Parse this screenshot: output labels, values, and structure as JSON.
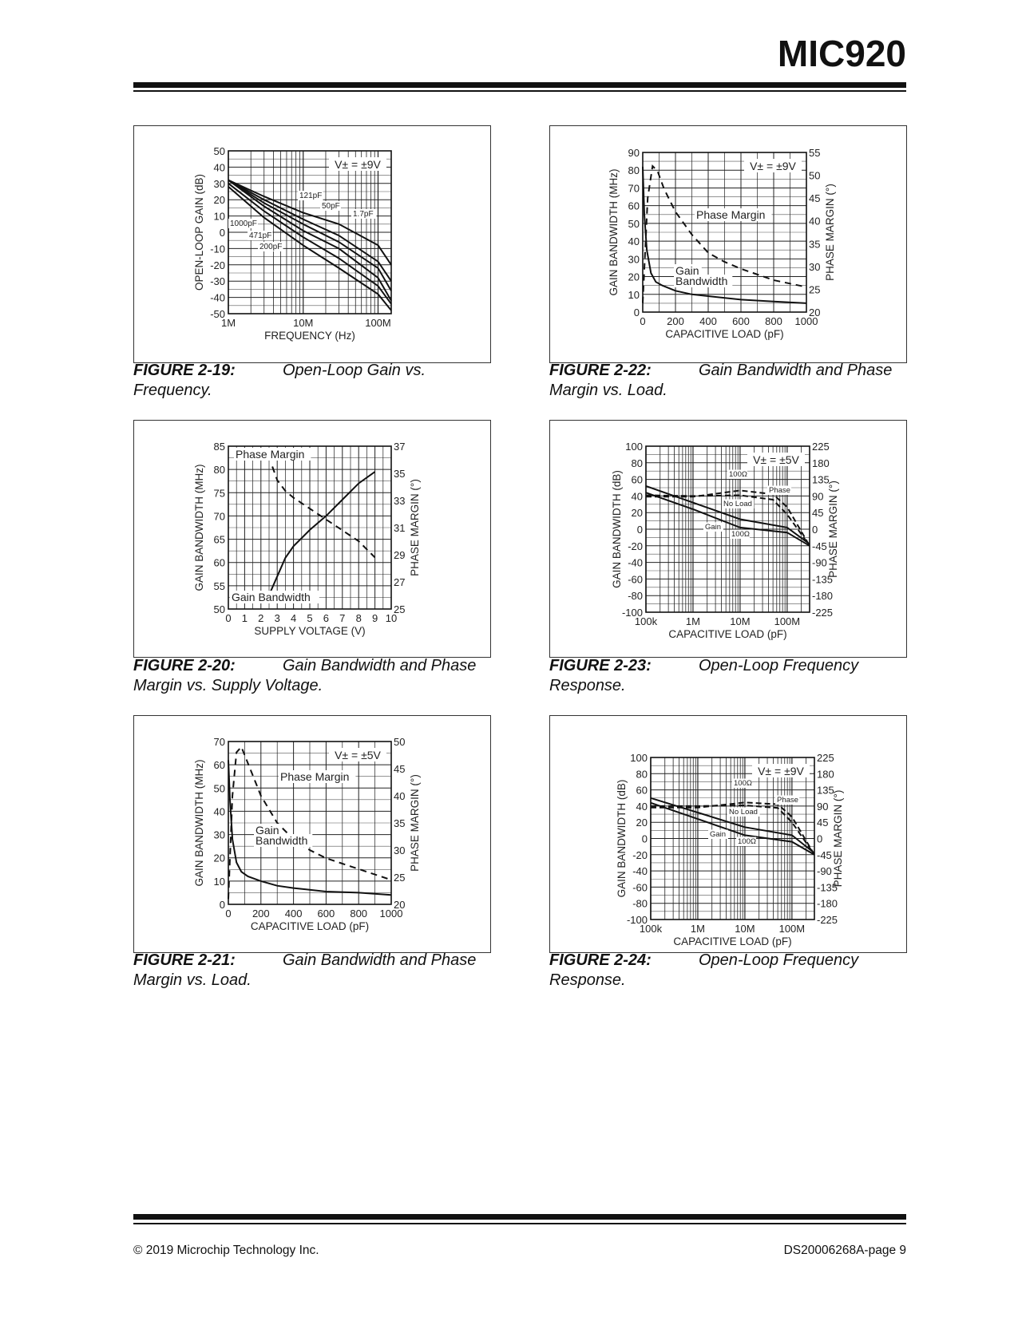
{
  "header": {
    "title": "MIC920"
  },
  "footer": {
    "copyright": "© 2019 Microchip Technology Inc.",
    "page": "DS20006268A-page 9"
  },
  "figures": [
    {
      "num": "FIGURE 2-19:",
      "caption": "Open-Loop Gain vs.",
      "caption2": "Frequency."
    },
    {
      "num": "FIGURE 2-22:",
      "caption": "Gain Bandwidth and Phase",
      "caption2": "Margin vs. Load."
    },
    {
      "num": "FIGURE 2-20:",
      "caption": "Gain Bandwidth and Phase",
      "caption2": "Margin vs. Supply Voltage."
    },
    {
      "num": "FIGURE 2-23:",
      "caption": "Open-Loop Frequency",
      "caption2": "Response."
    },
    {
      "num": "FIGURE 2-21:",
      "caption": "Gain Bandwidth and Phase",
      "caption2": "Margin vs. Load."
    },
    {
      "num": "FIGURE 2-24:",
      "caption": "Open-Loop Frequency",
      "caption2": "Response."
    }
  ],
  "chart_data": [
    {
      "id": "fig2-19",
      "type": "line",
      "xlabel": "FREQUENCY (Hz)",
      "ylabel": "OPEN-LOOP GAIN (dB)",
      "xscale": "log",
      "xlim": [
        1000000,
        150000000
      ],
      "ylim": [
        -50,
        50
      ],
      "xticks": [
        "1M",
        "10M",
        "100M"
      ],
      "yticks": [
        "50",
        "40",
        "30",
        "20",
        "10",
        "0",
        "-10",
        "-20",
        "-30",
        "-40",
        "-50"
      ],
      "annotation": "V± = ±9V",
      "series": [
        {
          "name": "1.7pF",
          "x": [
            1000000,
            3000000,
            10000000,
            30000000,
            100000000,
            150000000
          ],
          "y": [
            32,
            22,
            12,
            5,
            -8,
            -20
          ]
        },
        {
          "name": "50pF",
          "x": [
            1000000,
            3000000,
            10000000,
            30000000,
            100000000,
            150000000
          ],
          "y": [
            32,
            20,
            8,
            -2,
            -18,
            -30
          ]
        },
        {
          "name": "121pF",
          "x": [
            1000000,
            3000000,
            10000000,
            30000000,
            100000000,
            150000000
          ],
          "y": [
            32,
            18,
            5,
            -6,
            -22,
            -36
          ]
        },
        {
          "name": "200pF",
          "x": [
            1000000,
            3000000,
            10000000,
            30000000,
            100000000,
            150000000
          ],
          "y": [
            32,
            16,
            1,
            -10,
            -28,
            -42
          ]
        },
        {
          "name": "471pF",
          "x": [
            1000000,
            3000000,
            10000000,
            30000000,
            100000000,
            150000000
          ],
          "y": [
            30,
            13,
            -3,
            -16,
            -33,
            -44
          ]
        },
        {
          "name": "1000pF",
          "x": [
            1000000,
            3000000,
            10000000,
            30000000,
            100000000,
            150000000
          ],
          "y": [
            28,
            9,
            -8,
            -22,
            -38,
            -48
          ]
        }
      ]
    },
    {
      "id": "fig2-22",
      "type": "line",
      "xlabel": "CAPACITIVE LOAD (pF)",
      "ylabel": "GAIN BANDWIDTH (MHz)",
      "y2label": "PHASE MARGIN (°)",
      "xlim": [
        0,
        1000
      ],
      "ylim": [
        0,
        90
      ],
      "y2lim": [
        20,
        55
      ],
      "xticks": [
        "0",
        "200",
        "400",
        "600",
        "800",
        "1000"
      ],
      "yticks": [
        "90",
        "80",
        "70",
        "60",
        "50",
        "40",
        "30",
        "20",
        "10",
        "0"
      ],
      "y2ticks": [
        "55",
        "50",
        "45",
        "40",
        "35",
        "30",
        "25",
        "20"
      ],
      "annotation": "V± = ±9V",
      "labels": [
        "Phase Margin",
        "Gain",
        "Bandwidth"
      ],
      "series": [
        {
          "name": "Gain Bandwidth",
          "axis": "left",
          "x": [
            0,
            10,
            25,
            50,
            80,
            120,
            200,
            300,
            400,
            600,
            800,
            1000
          ],
          "y": [
            82,
            55,
            35,
            22,
            17,
            15,
            12,
            10,
            9,
            7,
            6,
            5
          ]
        },
        {
          "name": "Phase Margin",
          "axis": "right",
          "x": [
            0,
            30,
            60,
            90,
            130,
            200,
            300,
            400,
            500,
            600,
            800,
            1000
          ],
          "y": [
            22,
            45,
            52,
            51,
            47,
            42,
            37,
            33,
            31,
            29.5,
            27,
            25.5
          ]
        }
      ]
    },
    {
      "id": "fig2-20",
      "type": "line",
      "xlabel": "SUPPLY VOLTAGE (V)",
      "ylabel": "GAIN BANDWIDTH (MHz)",
      "y2label": "PHASE MARGIN (°)",
      "xlim": [
        0,
        10
      ],
      "ylim": [
        50,
        85
      ],
      "y2lim": [
        25,
        37
      ],
      "xticks": [
        "0",
        "1",
        "2",
        "3",
        "4",
        "5",
        "6",
        "7",
        "8",
        "9",
        "10"
      ],
      "yticks": [
        "85",
        "80",
        "75",
        "70",
        "65",
        "60",
        "55",
        "50"
      ],
      "y2ticks": [
        "37",
        "35",
        "33",
        "31",
        "29",
        "27",
        "25"
      ],
      "labels": [
        "Phase Margin",
        "Gain Bandwidth"
      ],
      "series": [
        {
          "name": "Gain Bandwidth",
          "axis": "left",
          "x": [
            2.5,
            3,
            3.5,
            4,
            5,
            6,
            7,
            8,
            9
          ],
          "y": [
            53,
            57,
            61,
            63.5,
            67,
            70,
            73.5,
            77,
            79.5
          ]
        },
        {
          "name": "Phase Margin",
          "axis": "right",
          "x": [
            2.7,
            3,
            3.5,
            4,
            5,
            6,
            7,
            8,
            9
          ],
          "y": [
            35.5,
            34.5,
            33.7,
            33.2,
            32.4,
            31.6,
            30.8,
            30.0,
            28.8
          ]
        }
      ]
    },
    {
      "id": "fig2-23",
      "type": "line",
      "xlabel": "CAPACITIVE LOAD (pF)",
      "ylabel": "GAIN BANDWIDTH (dB)",
      "y2label": "PHASE MARGIN (°)",
      "xscale": "log",
      "xlim": [
        100000,
        300000000
      ],
      "ylim": [
        -100,
        100
      ],
      "y2lim": [
        -225,
        225
      ],
      "xticks": [
        "100k",
        "1M",
        "10M",
        "100M"
      ],
      "yticks": [
        "100",
        "80",
        "60",
        "40",
        "20",
        "0",
        "-20",
        "-40",
        "-60",
        "-80",
        "-100"
      ],
      "y2ticks": [
        "225",
        "180",
        "135",
        "90",
        "45",
        "0",
        "-45",
        "-90",
        "-135",
        "-180",
        "-225"
      ],
      "annotation": "V± = ±5V",
      "labels": [
        "100Ω",
        "Phase",
        "No Load",
        "Gain",
        "100Ω"
      ],
      "series": [
        {
          "name": "Gain No Load",
          "axis": "left",
          "x": [
            100000,
            1000000,
            10000000,
            100000000,
            300000000
          ],
          "y": [
            52,
            32,
            12,
            2,
            -18
          ]
        },
        {
          "name": "Gain 100Ω",
          "axis": "left",
          "x": [
            100000,
            1000000,
            10000000,
            100000000,
            300000000
          ],
          "y": [
            44,
            24,
            2,
            -4,
            -20
          ]
        },
        {
          "name": "Phase No Load",
          "axis": "right",
          "x": [
            100000,
            1000000,
            10000000,
            50000000,
            100000000,
            300000000
          ],
          "y": [
            92,
            90,
            92,
            80,
            40,
            -45
          ]
        },
        {
          "name": "Phase 100Ω",
          "axis": "right",
          "x": [
            100000,
            1000000,
            10000000,
            50000000,
            100000000,
            300000000
          ],
          "y": [
            88,
            88,
            105,
            95,
            60,
            -45
          ]
        }
      ]
    },
    {
      "id": "fig2-21",
      "type": "line",
      "xlabel": "CAPACITIVE LOAD (pF)",
      "ylabel": "GAIN BANDWIDTH (MHz)",
      "y2label": "PHASE MARGIN (°)",
      "xlim": [
        0,
        1000
      ],
      "ylim": [
        0,
        70
      ],
      "y2lim": [
        20,
        50
      ],
      "xticks": [
        "0",
        "200",
        "400",
        "600",
        "800",
        "1000"
      ],
      "yticks": [
        "70",
        "60",
        "50",
        "40",
        "30",
        "20",
        "10",
        "0"
      ],
      "y2ticks": [
        "50",
        "45",
        "40",
        "35",
        "30",
        "25",
        "20"
      ],
      "annotation": "V± = ±5V",
      "labels": [
        "Phase Margin",
        "Gain",
        "Bandwidth"
      ],
      "series": [
        {
          "name": "Gain Bandwidth",
          "axis": "left",
          "x": [
            0,
            10,
            25,
            50,
            80,
            120,
            200,
            300,
            400,
            600,
            800,
            1000
          ],
          "y": [
            62,
            45,
            28,
            18,
            14,
            12,
            10,
            8,
            7,
            5.5,
            5,
            4
          ]
        },
        {
          "name": "Phase Margin",
          "axis": "right",
          "x": [
            0,
            25,
            50,
            80,
            120,
            200,
            300,
            400,
            500,
            600,
            800,
            1000
          ],
          "y": [
            21,
            40,
            48,
            49,
            46,
            40,
            35,
            32,
            30,
            28.5,
            26.5,
            24.5
          ]
        }
      ]
    },
    {
      "id": "fig2-24",
      "type": "line",
      "xlabel": "CAPACITIVE LOAD (pF)",
      "ylabel": "GAIN BANDWIDTH (dB)",
      "y2label": "PHASE MARGIN (°)",
      "xscale": "log",
      "xlim": [
        100000,
        300000000
      ],
      "ylim": [
        -100,
        100
      ],
      "y2lim": [
        -225,
        225
      ],
      "xticks": [
        "100k",
        "1M",
        "10M",
        "100M"
      ],
      "yticks": [
        "100",
        "80",
        "60",
        "40",
        "20",
        "0",
        "-20",
        "-40",
        "-60",
        "-80",
        "-100"
      ],
      "y2ticks": [
        "225",
        "180",
        "135",
        "90",
        "45",
        "0",
        "-45",
        "-90",
        "-135",
        "-180",
        "-225"
      ],
      "annotation": "V± = ±9V",
      "labels": [
        "100Ω",
        "Phase",
        "No Load",
        "Gain",
        "100Ω"
      ],
      "series": [
        {
          "name": "Gain No Load",
          "axis": "left",
          "x": [
            100000,
            1000000,
            10000000,
            100000000,
            300000000
          ],
          "y": [
            50,
            32,
            14,
            4,
            -18
          ]
        },
        {
          "name": "Gain 100Ω",
          "axis": "left",
          "x": [
            100000,
            1000000,
            10000000,
            100000000,
            300000000
          ],
          "y": [
            44,
            24,
            4,
            -4,
            -20
          ]
        },
        {
          "name": "Phase No Load",
          "axis": "right",
          "x": [
            100000,
            1000000,
            10000000,
            50000000,
            100000000,
            300000000
          ],
          "y": [
            90,
            90,
            92,
            85,
            45,
            -45
          ]
        },
        {
          "name": "Phase 100Ω",
          "axis": "right",
          "x": [
            100000,
            1000000,
            10000000,
            50000000,
            100000000,
            300000000
          ],
          "y": [
            86,
            86,
            100,
            95,
            60,
            -45
          ]
        }
      ]
    }
  ]
}
